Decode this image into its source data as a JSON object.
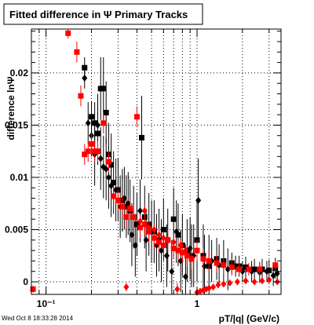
{
  "title": "Fitted difference in  Ψ   Primary Tracks",
  "footer": "Wed Oct  8 18:33:28 2014",
  "chart_data": {
    "type": "scatter",
    "title": "Fitted difference in  Ψ   Primary Tracks",
    "xlabel": "pT/|q| (GeV/c)",
    "ylabel": "difference lnΨ",
    "xscale": "log",
    "xlim": [
      0.08,
      3.6
    ],
    "ylim": [
      -0.0012,
      0.0242
    ],
    "grid": true,
    "legend": "none",
    "x_ticks": [
      0.1,
      1
    ],
    "x_tick_labels": [
      "10⁻¹",
      "1"
    ],
    "y_ticks": [
      0,
      0.005,
      0.01,
      0.015,
      0.02
    ],
    "y_tick_labels": [
      "0",
      "0.005",
      "0.01",
      "0.015",
      "0.02"
    ],
    "series": [
      {
        "color": "#000000",
        "marker": "square",
        "points": [
          [
            0.18,
            0.0205,
            0.001
          ],
          [
            0.2,
            0.0158,
            0.0015
          ],
          [
            0.21,
            0.0152,
            0.002
          ],
          [
            0.22,
            0.0142,
            0.003
          ],
          [
            0.23,
            0.0185,
            0.003
          ],
          [
            0.24,
            0.0185,
            0.003
          ],
          [
            0.25,
            0.0162,
            0.003
          ],
          [
            0.26,
            0.0122,
            0.003
          ],
          [
            0.27,
            0.0112,
            0.003
          ],
          [
            0.28,
            0.0095,
            0.003
          ],
          [
            0.3,
            0.0088,
            0.003
          ],
          [
            0.32,
            0.0078,
            0.003
          ],
          [
            0.34,
            0.0072,
            0.003
          ],
          [
            0.36,
            0.0068,
            0.003
          ],
          [
            0.38,
            0.0062,
            0.003
          ],
          [
            0.4,
            0.0055,
            0.003
          ],
          [
            0.43,
            0.0138,
            0.004
          ],
          [
            0.45,
            0.0062,
            0.003
          ],
          [
            0.48,
            0.0055,
            0.003
          ],
          [
            0.52,
            0.0048,
            0.003
          ],
          [
            0.56,
            0.004,
            0.003
          ],
          [
            0.6,
            0.005,
            0.003
          ],
          [
            0.64,
            0.004,
            0.003
          ],
          [
            0.7,
            0.006,
            0.003
          ],
          [
            0.75,
            0.0045,
            0.003
          ],
          [
            0.8,
            0.0035,
            0.003
          ],
          [
            0.86,
            0.003,
            0.003
          ],
          [
            0.92,
            0.0025,
            0.003
          ],
          [
            1.0,
            0.004,
            0.004
          ],
          [
            1.1,
            0.0025,
            0.003
          ],
          [
            1.2,
            0.0015,
            0.003
          ],
          [
            1.35,
            0.0022,
            0.002
          ],
          [
            1.5,
            0.002,
            0.002
          ],
          [
            1.7,
            0.0018,
            0.001
          ],
          [
            1.9,
            0.0015,
            0.001
          ],
          [
            2.1,
            0.0014,
            0.001
          ],
          [
            2.4,
            0.0012,
            0.001
          ],
          [
            2.7,
            0.0012,
            0.001
          ],
          [
            3.0,
            0.0011,
            0.001
          ],
          [
            3.3,
            0.0013,
            0.001
          ]
        ]
      },
      {
        "color": "#000000",
        "marker": "diamond",
        "points": [
          [
            0.18,
            0.0195,
            0.001
          ],
          [
            0.19,
            0.0152,
            0.002
          ],
          [
            0.2,
            0.014,
            0.002
          ],
          [
            0.21,
            0.0122,
            0.003
          ],
          [
            0.22,
            0.015,
            0.003
          ],
          [
            0.23,
            0.0118,
            0.003
          ],
          [
            0.24,
            0.011,
            0.003
          ],
          [
            0.25,
            0.0108,
            0.003
          ],
          [
            0.26,
            0.01,
            0.003
          ],
          [
            0.27,
            0.0092,
            0.003
          ],
          [
            0.29,
            0.0088,
            0.003
          ],
          [
            0.31,
            0.0072,
            0.003
          ],
          [
            0.33,
            0.008,
            0.003
          ],
          [
            0.35,
            0.0075,
            0.003
          ],
          [
            0.37,
            0.0045,
            0.003
          ],
          [
            0.39,
            0.0035,
            0.003
          ],
          [
            0.42,
            0.0068,
            0.003
          ],
          [
            0.46,
            0.004,
            0.003
          ],
          [
            0.5,
            0.0048,
            0.003
          ],
          [
            0.54,
            0.0035,
            0.003
          ],
          [
            0.58,
            0.003,
            0.003
          ],
          [
            0.63,
            0.0025,
            0.003
          ],
          [
            0.68,
            0.001,
            0.003
          ],
          [
            0.73,
            0.0048,
            0.003
          ],
          [
            0.78,
            0.002,
            0.003
          ],
          [
            0.84,
            0.0005,
            0.003
          ],
          [
            0.9,
            0.0032,
            0.003
          ],
          [
            0.95,
            0.0025,
            0.003
          ],
          [
            1.02,
            0.0078,
            0.004
          ],
          [
            1.12,
            0.0015,
            0.003
          ],
          [
            1.25,
            0.002,
            0.002
          ],
          [
            1.4,
            0.0016,
            0.002
          ],
          [
            1.6,
            0.0012,
            0.002
          ],
          [
            1.8,
            0.0015,
            0.001
          ],
          [
            2.0,
            0.001,
            0.001
          ],
          [
            2.3,
            0.001,
            0.001
          ],
          [
            2.6,
            0.0009,
            0.001
          ],
          [
            2.9,
            0.001,
            0.001
          ],
          [
            3.2,
            0.0006,
            0.001
          ],
          [
            3.4,
            0.0008,
            0.001
          ]
        ]
      },
      {
        "color": "#ff0000",
        "marker": "square",
        "points": [
          [
            0.082,
            -0.0007,
            0.0003
          ],
          [
            0.14,
            0.0238,
            0.0005
          ],
          [
            0.16,
            0.022,
            0.001
          ],
          [
            0.17,
            0.0178,
            0.001
          ],
          [
            0.18,
            0.0122,
            0.001
          ],
          [
            0.19,
            0.0125,
            0.001
          ],
          [
            0.2,
            0.0132,
            0.001
          ],
          [
            0.21,
            0.0125,
            0.001
          ],
          [
            0.22,
            0.0125,
            0.001
          ],
          [
            0.24,
            0.0152,
            0.001
          ],
          [
            0.26,
            0.0115,
            0.001
          ],
          [
            0.28,
            0.0082,
            0.001
          ],
          [
            0.3,
            0.0078,
            0.001
          ],
          [
            0.32,
            0.0072,
            0.001
          ],
          [
            0.34,
            0.0062,
            0.001
          ],
          [
            0.36,
            0.007,
            0.001
          ],
          [
            0.38,
            0.0062,
            0.001
          ],
          [
            0.4,
            0.0158,
            0.001
          ],
          [
            0.42,
            0.0052,
            0.001
          ],
          [
            0.45,
            0.0055,
            0.001
          ],
          [
            0.48,
            0.0048,
            0.001
          ],
          [
            0.52,
            0.0042,
            0.001
          ],
          [
            0.56,
            0.0038,
            0.001
          ],
          [
            0.6,
            0.0035,
            0.001
          ],
          [
            0.64,
            0.004,
            0.001
          ],
          [
            0.7,
            0.0032,
            0.001
          ],
          [
            0.75,
            0.003,
            0.001
          ],
          [
            0.8,
            0.0028,
            0.001
          ],
          [
            0.86,
            0.0025,
            0.001
          ],
          [
            0.92,
            0.0022,
            0.001
          ],
          [
            1.0,
            0.003,
            0.001
          ],
          [
            1.1,
            0.0022,
            0.001
          ],
          [
            1.2,
            0.002,
            0.001
          ],
          [
            1.35,
            0.0018,
            0.0008
          ],
          [
            1.5,
            0.0016,
            0.0008
          ],
          [
            1.7,
            0.0014,
            0.0008
          ],
          [
            1.9,
            0.0012,
            0.0006
          ],
          [
            2.2,
            0.0012,
            0.0006
          ],
          [
            2.6,
            0.0012,
            0.0006
          ],
          [
            3.3,
            0.0016,
            0.0005
          ]
        ]
      },
      {
        "color": "#ff0000",
        "marker": "diamond",
        "points": [
          [
            0.082,
            -0.0007,
            0.0003
          ],
          [
            0.34,
            -0.0005,
            0.0004
          ],
          [
            0.42,
            0.0058,
            0.0006
          ],
          [
            0.45,
            0.0068,
            0.0006
          ],
          [
            0.48,
            0.0052,
            0.0006
          ],
          [
            0.52,
            0.005,
            0.0006
          ],
          [
            0.56,
            0.0045,
            0.0006
          ],
          [
            0.6,
            0.0042,
            0.0006
          ],
          [
            0.64,
            0.004,
            0.0006
          ],
          [
            0.7,
            0.0038,
            0.0006
          ],
          [
            0.74,
            -0.0007,
            0.0006
          ],
          [
            0.78,
            0.0035,
            0.0006
          ],
          [
            0.84,
            0.003,
            0.0006
          ],
          [
            1.0,
            -0.001,
            0.0004
          ],
          [
            1.05,
            -0.0009,
            0.0003
          ],
          [
            1.1,
            -0.0008,
            0.0003
          ],
          [
            1.15,
            -0.0007,
            0.0003
          ],
          [
            1.2,
            -0.0006,
            0.0003
          ],
          [
            1.28,
            -0.0005,
            0.0003
          ],
          [
            1.38,
            -0.0003,
            0.0003
          ],
          [
            1.5,
            -0.0002,
            0.0003
          ],
          [
            1.65,
            -0.0001,
            0.0003
          ],
          [
            1.85,
            0.0,
            0.0003
          ],
          [
            2.1,
            0.0001,
            0.0003
          ],
          [
            2.4,
            0.0,
            0.0003
          ],
          [
            2.7,
            0.0001,
            0.0003
          ],
          [
            3.0,
            0.0002,
            0.0003
          ],
          [
            3.4,
            0.0,
            0.0003
          ]
        ]
      }
    ]
  }
}
